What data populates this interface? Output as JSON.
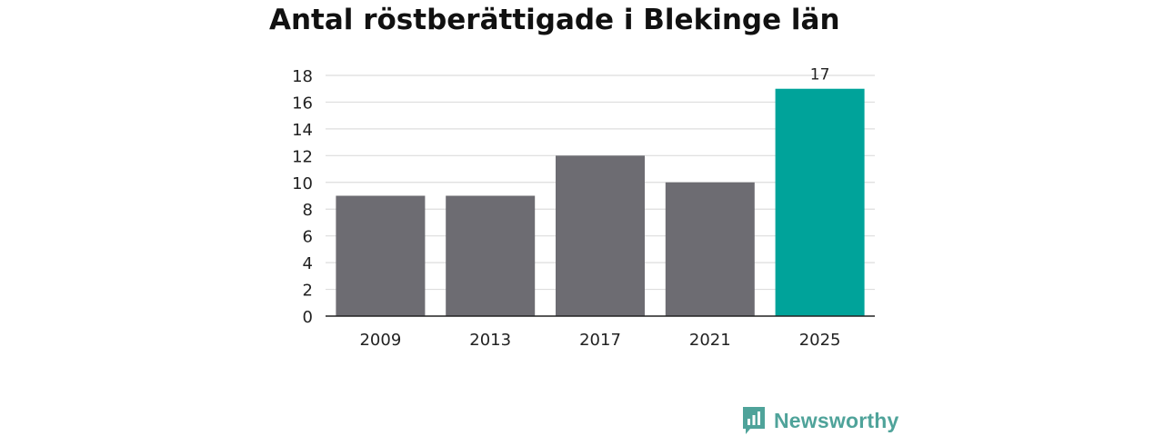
{
  "chart_data": {
    "type": "bar",
    "title": "Antal röstberättigade i Blekinge län",
    "categories": [
      "2009",
      "2013",
      "2017",
      "2021",
      "2025"
    ],
    "values": [
      9,
      9,
      12,
      10,
      17
    ],
    "ylim": [
      0,
      18
    ],
    "yticks": [
      0,
      2,
      4,
      6,
      8,
      10,
      12,
      14,
      16,
      18
    ],
    "xlabel": "",
    "ylabel": "",
    "grid": true,
    "legend": "none",
    "data_labels": [
      {
        "category": "2025",
        "text": "17"
      }
    ],
    "colors": {
      "default_bar": "#6d6c72",
      "highlight_bar": "#00a39a",
      "gridline": "#dddddd",
      "axis": "#222222"
    }
  },
  "branding": {
    "logo_text": "Newsworthy",
    "logo_icon": "newsworthy-chart-bubble-icon",
    "logo_color": "#4fa39a"
  }
}
